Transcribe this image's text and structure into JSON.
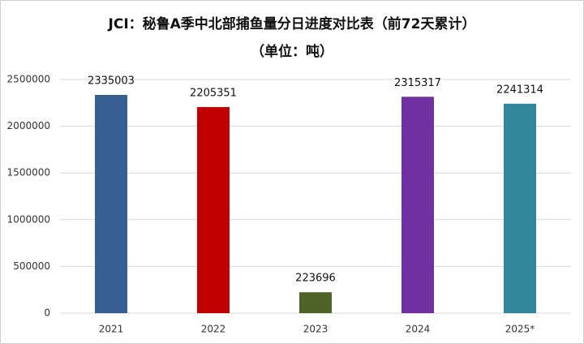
{
  "chart_data": {
    "type": "bar",
    "title": "JCI：秘鲁A季中北部捕鱼量分日进度对比表（前72天累计）",
    "subtitle": "（单位：吨）",
    "categories": [
      "2021",
      "2022",
      "2023",
      "2024",
      "2025*"
    ],
    "values": [
      2335003,
      2205351,
      223696,
      2315317,
      2241314
    ],
    "colors": [
      "#366092",
      "#c00000",
      "#4f6228",
      "#7030a0",
      "#31869b"
    ],
    "ylim": [
      0,
      2500000
    ],
    "yticks": [
      0,
      500000,
      1000000,
      1500000,
      2000000,
      2500000
    ],
    "grid": true
  }
}
